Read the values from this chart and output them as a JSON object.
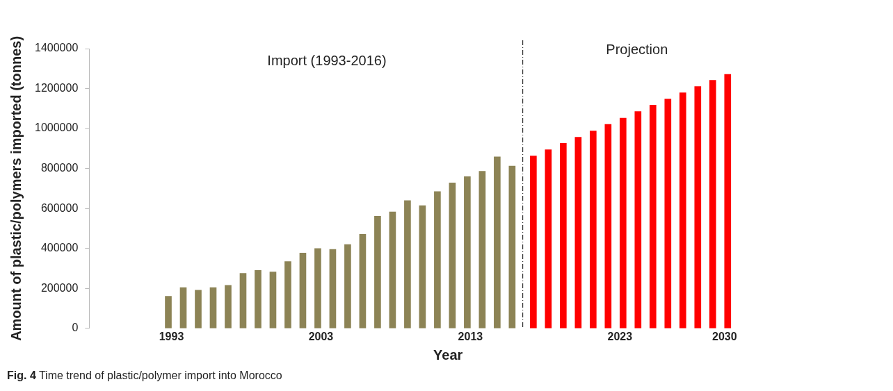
{
  "chart_data": {
    "type": "bar",
    "xlabel": "Year",
    "ylabel": "Amount of plastic/polymers imported (tonnes)",
    "series": [
      {
        "color": "#8c8355",
        "x": [
          1993,
          1994,
          1995,
          1996,
          1997,
          1998,
          1999,
          2000,
          2001,
          2002,
          2003,
          2004,
          2005,
          2006,
          2007,
          2008,
          2009,
          2010,
          2011,
          2012,
          2013,
          2014,
          2015,
          2016
        ],
        "values": [
          161000,
          204000,
          191000,
          204000,
          215000,
          275000,
          290000,
          282000,
          334000,
          377000,
          400000,
          395000,
          420000,
          471000,
          561000,
          583000,
          639000,
          614000,
          685000,
          728000,
          759000,
          786000,
          858000,
          812000
        ]
      },
      {
        "color": "#ff0000",
        "x": [
          2017,
          2018,
          2019,
          2020,
          2021,
          2022,
          2023,
          2024,
          2025,
          2026,
          2027,
          2028,
          2029,
          2030
        ],
        "values": [
          863000,
          894000,
          926000,
          957000,
          988000,
          1021000,
          1052000,
          1085000,
          1117000,
          1148000,
          1179000,
          1210000,
          1242000,
          1271000
        ]
      }
    ],
    "xlim": [
      1992.3,
      2030.7
    ],
    "xticks": [
      1993,
      2003,
      2013,
      2023,
      2030
    ],
    "ylim": [
      0,
      1400000
    ],
    "yticks": [
      0,
      200000,
      400000,
      600000,
      800000,
      1000000,
      1200000,
      1400000
    ],
    "ref_lines": [
      {
        "axis": "x",
        "value": 2016.5,
        "color": "#333333",
        "line_style": "dashed"
      }
    ],
    "annotations": [
      "Import (1993-2016)",
      "Projection",
      "Fig. 4  Time trend of plastic/polymer import into Morocco"
    ],
    "grid": false,
    "legend": false
  }
}
